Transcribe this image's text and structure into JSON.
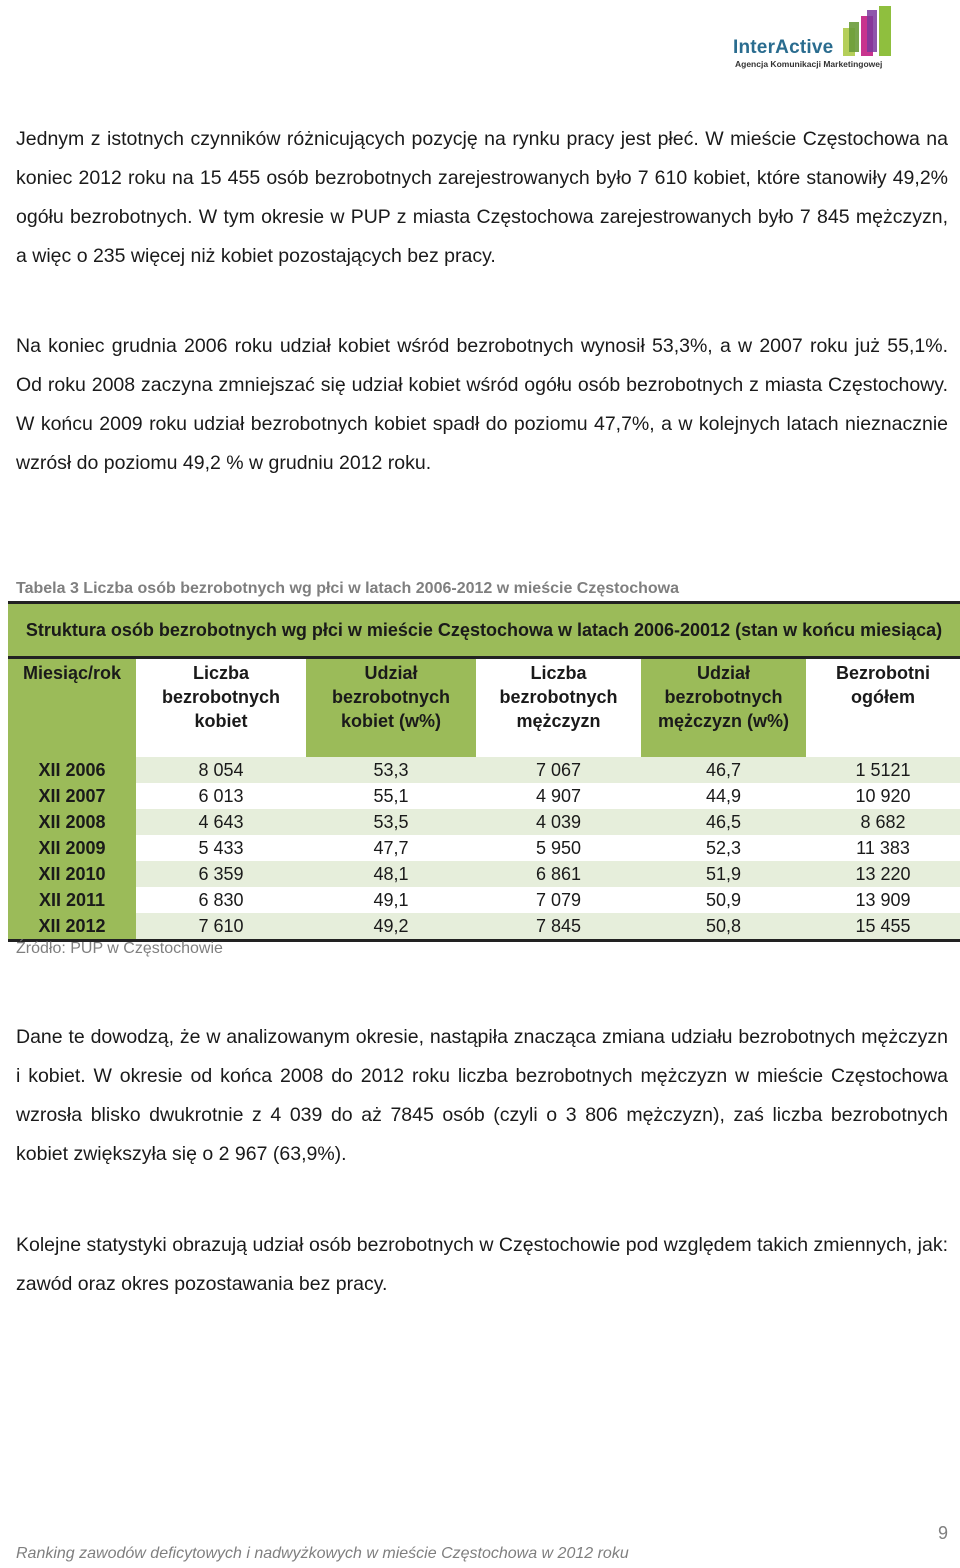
{
  "logo": {
    "name": "InterActive",
    "tagline": "Agencja Komunikacji Marketingowej"
  },
  "paragraphs": {
    "p1": "Jednym z istotnych czynników różnicujących pozycję na rynku pracy jest płeć. W mieście Częstochowa na koniec 2012 roku na 15 455 osób bezrobotnych zarejestrowanych było 7 610 kobiet, które stanowiły 49,2% ogółu bezrobotnych. W tym okresie w PUP z miasta Częstochowa zarejestrowanych było 7 845 mężczyzn, a więc o 235 więcej niż kobiet pozostających bez pracy.",
    "p2": "Na koniec grudnia 2006 roku udział kobiet wśród bezrobotnych wynosił 53,3%, a w 2007 roku już 55,1%. Od roku 2008 zaczyna zmniejszać się udział kobiet wśród ogółu osób bezrobotnych z miasta Częstochowy. W końcu 2009 roku udział bezrobotnych kobiet spadł do poziomu 47,7%, a w kolejnych latach nieznacznie wzrósł do poziomu 49,2 % w grudniu 2012 roku.",
    "p3": "Dane te dowodzą, że w analizowanym okresie, nastąpiła znacząca zmiana udziału bezrobotnych mężczyzn i kobiet. W okresie od końca 2008 do 2012 roku liczba bezrobotnych mężczyzn w mieście Częstochowa wzrosła blisko dwukrotnie z 4 039 do aż 7845 osób (czyli o 3 806 mężczyzn), zaś liczba bezrobotnych kobiet zwiększyła się o 2 967 (63,9%).",
    "p4": "Kolejne statystyki obrazują udział osób bezrobotnych w Częstochowie pod względem takich zmiennych, jak: zawód oraz okres pozostawania bez pracy."
  },
  "table": {
    "caption": "Tabela 3 Liczba osób bezrobotnych wg płci w latach 2006-2012 w mieście Częstochowa",
    "title": "Struktura osób bezrobotnych wg płci w mieście Częstochowa w latach 2006-20012 (stan w końcu miesiąca)",
    "headers": [
      "Miesiąc/rok",
      "Liczba bezrobotnych kobiet",
      "Udział bezrobotnych kobiet (w%)",
      "Liczba bezrobotnych mężczyzn",
      "Udział bezrobotnych mężczyzn (w%)",
      "Bezrobotni ogółem"
    ],
    "rows": [
      [
        "XII 2006",
        "8 054",
        "53,3",
        "7 067",
        "46,7",
        "1 5121"
      ],
      [
        "XII 2007",
        "6 013",
        "55,1",
        "4 907",
        "44,9",
        "10 920"
      ],
      [
        "XII 2008",
        "4 643",
        "53,5",
        "4 039",
        "46,5",
        "8 682"
      ],
      [
        "XII 2009",
        "5 433",
        "47,7",
        "5 950",
        "52,3",
        "11 383"
      ],
      [
        "XII 2010",
        "6 359",
        "48,1",
        "6 861",
        "51,9",
        "13 220"
      ],
      [
        "XII 2011",
        "6 830",
        "49,1",
        "7 079",
        "50,9",
        "13 909"
      ],
      [
        "XII 2012",
        "7 610",
        "49,2",
        "7 845",
        "50,8",
        "15 455"
      ]
    ],
    "source": "Źródło: PUP w Częstochowie"
  },
  "footer": {
    "text": "Ranking zawodów deficytowych i nadwyżkowych w mieście Częstochowa w 2012 roku",
    "page_number": "9"
  },
  "colors": {
    "header_green": "#9bbb59",
    "row_shade": "#e6eedb",
    "caption_gray": "#7f7f7f",
    "logo_blue": "#2a6c8f"
  }
}
